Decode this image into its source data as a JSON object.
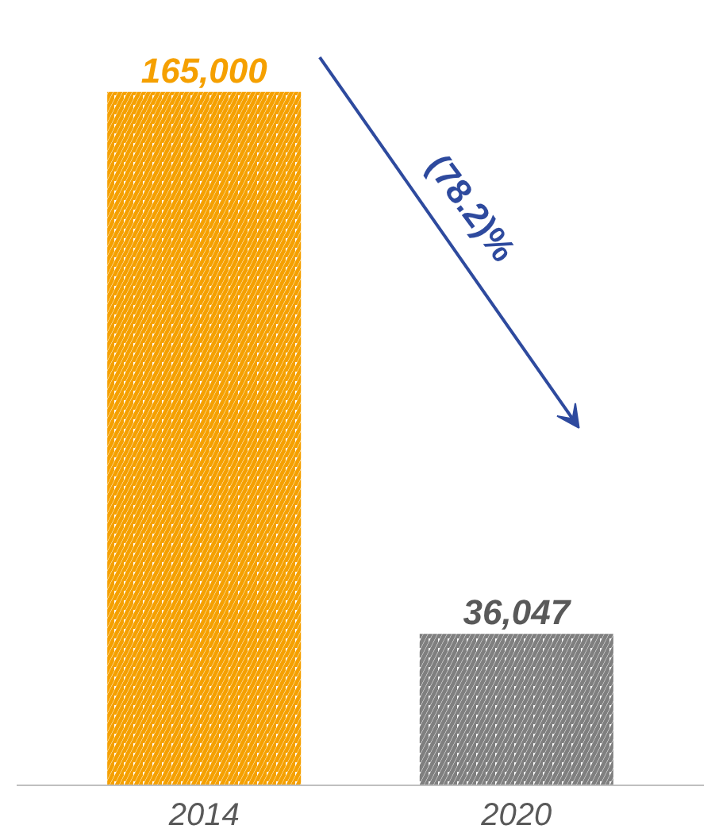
{
  "chart_data": {
    "type": "bar",
    "categories": [
      "2014",
      "2020"
    ],
    "values": [
      165000,
      36047
    ],
    "colors": [
      "#f5a000",
      "#7f7f7f"
    ],
    "value_labels": [
      "165,000",
      "36,047"
    ],
    "annotations": [
      "(78.2)%"
    ]
  }
}
